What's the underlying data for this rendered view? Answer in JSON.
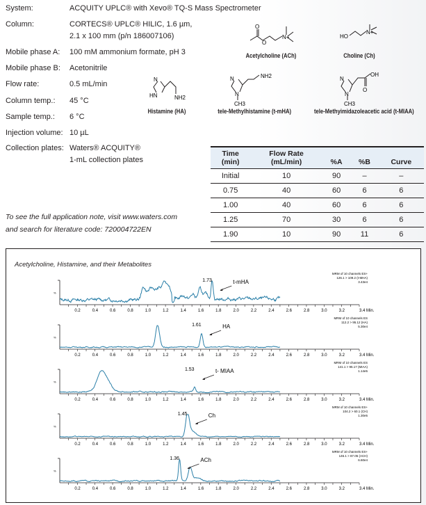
{
  "conditions": [
    {
      "label": "System:",
      "value": "ACQUITY UPLC® with Xevo® TQ-S Mass Spectrometer"
    },
    {
      "label": "Column:",
      "value": "CORTECS® UPLC® HILIC, 1.6 µm,",
      "value2": "2.1 x 100 mm (p/n 186007106)"
    },
    {
      "label": "Mobile phase A:",
      "value": "100 mM ammonium formate, pH 3"
    },
    {
      "label": "Mobile phase B:",
      "value": "Acetonitrile"
    },
    {
      "label": "Flow rate:",
      "value": "0.5 mL/min"
    },
    {
      "label": "Column temp.:",
      "value": "45 °C"
    },
    {
      "label": "Sample temp.:",
      "value": "6 °C"
    },
    {
      "label": "Injection volume:",
      "value": "10 µL"
    },
    {
      "label": "Collection plates:",
      "value": "Waters® ACQUITY®",
      "value2": "1-mL collection plates"
    }
  ],
  "note": {
    "line1": "To see the full application note, visit www.waters.com",
    "line2": "and search for literature code: 720004722EN"
  },
  "structures": {
    "ach": "Acetylcholine (ACh)",
    "ch": "Choline (Ch)",
    "ha": "Histamine (HA)",
    "tmha": "tele-Methylhistamine (t-mHA)",
    "tmiaa": "tele-Methyimidazoleacetic acid (t-MIAA)",
    "atoms": {
      "o": "O",
      "n": "N",
      "np": "N+",
      "ho": "HO",
      "nh2": "NH2",
      "hn": "HN",
      "ch3": "CH3",
      "oh": "OH"
    }
  },
  "gradient_table": {
    "headers": [
      [
        "Time",
        "(min)"
      ],
      [
        "Flow Rate",
        "(mL/min)"
      ],
      [
        "%A",
        ""
      ],
      [
        "%B",
        ""
      ],
      [
        "Curve",
        ""
      ]
    ],
    "rows": [
      [
        "Initial",
        "10",
        "90",
        "–",
        "–"
      ],
      [
        "0.75",
        "40",
        "60",
        "6",
        "6"
      ],
      [
        "1.00",
        "40",
        "60",
        "6",
        "6"
      ],
      [
        "1.25",
        "70",
        "30",
        "6",
        "6"
      ],
      [
        "1.90",
        "10",
        "90",
        "11",
        "6"
      ]
    ]
  },
  "chart_data": {
    "type": "line",
    "title": "Acetylcholine, Histamine, and their Metabolites",
    "xlim": [
      0,
      3.4
    ],
    "xticks": [
      "0.2",
      "0.4",
      "0.6",
      "0.8",
      "1.0",
      "1.2",
      "1.4",
      "1.6",
      "1.8",
      "2.0",
      "2.2",
      "2.4",
      "2.6",
      "2.8",
      "3.0",
      "3.2",
      "3.4"
    ],
    "xunit": "Min.",
    "ylabel": "%",
    "trace_color": "#2a7fa8",
    "panels": [
      {
        "analyte": "t-mHA",
        "rt_label": "1.73",
        "info": [
          "MRM of 10 channels ES+",
          "126.1 > 109.2 (t-MHA)",
          "3.43e4"
        ],
        "noise": 0.06,
        "baseline": 0.18,
        "peaks": [
          [
            0.95,
            0.35,
            0.02
          ],
          [
            1.05,
            0.35,
            0.05
          ],
          [
            1.13,
            0.25,
            0.02
          ],
          [
            1.18,
            0.55,
            0.02
          ],
          [
            1.23,
            0.55,
            0.025
          ],
          [
            1.4,
            0.15,
            0.03
          ],
          [
            1.51,
            0.2,
            0.02
          ],
          [
            1.59,
            0.4,
            0.02
          ],
          [
            1.65,
            0.2,
            0.03
          ],
          [
            1.73,
            0.85,
            0.012
          ]
        ],
        "label_rt": 1.73
      },
      {
        "analyte": "HA",
        "rt_label": "1.61",
        "info": [
          "MRM of 10 channels ES",
          "112.2 > 95.12 (HA)",
          "5.30e4"
        ],
        "noise": 0.02,
        "baseline": 0.06,
        "peaks": [
          [
            1.11,
            0.95,
            0.022
          ],
          [
            1.61,
            0.6,
            0.015
          ]
        ],
        "label_rt": 1.61
      },
      {
        "analyte": "t- MIAA",
        "rt_label": "1.53",
        "info": [
          "MRM of 10 channels ES",
          "141.1 > 95.17 (MIAA)",
          "1.14e5"
        ],
        "noise": 0.02,
        "baseline": 0.05,
        "peaks": [
          [
            0.47,
            0.85,
            0.05
          ],
          [
            0.55,
            0.3,
            0.05
          ],
          [
            1.53,
            0.22,
            0.012
          ]
        ],
        "label_rt": 1.53
      },
      {
        "analyte": "Ch",
        "rt_label": "1.45",
        "info": [
          "MRM of 10 channels ES+",
          "104.2 > 60.1 (CH)",
          "1.30e5"
        ],
        "noise": 0.015,
        "baseline": 0.04,
        "peaks": [
          [
            1.45,
            0.95,
            0.02
          ],
          [
            1.5,
            0.25,
            0.04
          ]
        ],
        "label_rt": 1.45
      },
      {
        "analyte": "ACh",
        "rt_label": "1.36",
        "info": [
          "MRM of 10 channels ES+",
          "146.1 > 87.05 (ACH)",
          "6.60e4"
        ],
        "noise": 0.02,
        "baseline": 0.05,
        "peaks": [
          [
            1.36,
            0.95,
            0.012
          ],
          [
            1.48,
            0.6,
            0.02
          ],
          [
            1.55,
            0.15,
            0.04
          ]
        ],
        "label_rt": 1.36
      }
    ]
  }
}
